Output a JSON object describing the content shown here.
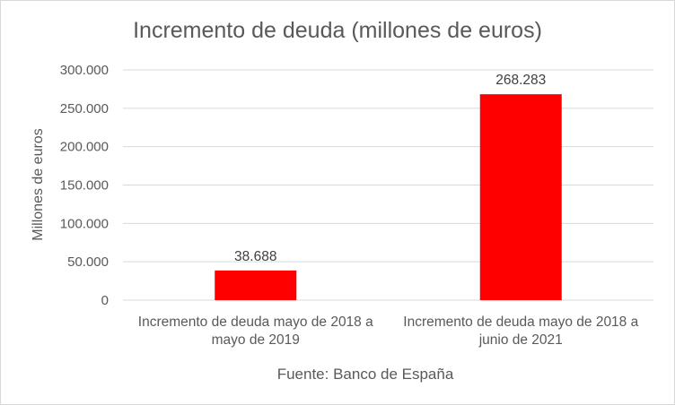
{
  "chart_data": {
    "type": "bar",
    "title": "Incremento de deuda (millones de euros)",
    "ylabel": "Millones de euros",
    "xlabel": "",
    "source_note": "Fuente: Banco de España",
    "categories": [
      [
        "Incremento de deuda mayo de 2018 a",
        "mayo de 2019"
      ],
      [
        "Incremento de deuda mayo de 2018 a",
        "junio de 2021"
      ]
    ],
    "values": [
      38688,
      268283
    ],
    "value_labels": [
      "38.688",
      "268.283"
    ],
    "ylim": [
      0,
      300000
    ],
    "yticks": [
      0,
      50000,
      100000,
      150000,
      200000,
      250000,
      300000
    ],
    "ytick_labels": [
      "0",
      "50.000",
      "100.000",
      "150.000",
      "200.000",
      "250.000",
      "300.000"
    ],
    "grid": true,
    "legend": "none",
    "bar_color": "#ff0000",
    "grid_color": "#d9d9d9"
  }
}
